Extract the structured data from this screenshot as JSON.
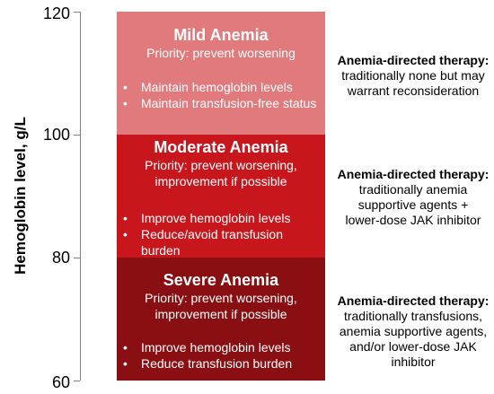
{
  "axis": {
    "label": "Hemoglobin level, g/L",
    "ticks": [
      "120",
      "100",
      "80",
      "60"
    ]
  },
  "bands": [
    {
      "title": "Mild Anemia",
      "priority": "Priority: prevent worsening",
      "bullets": [
        "Maintain hemoglobin levels",
        "Maintain transfusion-free status"
      ],
      "color": "#e07a7c"
    },
    {
      "title": "Moderate Anemia",
      "priority": "Priority: prevent worsening,\nimprovement if possible",
      "bullets": [
        "Improve hemoglobin levels",
        "Reduce/avoid transfusion burden"
      ],
      "color": "#c8161d"
    },
    {
      "title": "Severe Anemia",
      "priority": "Priority: prevent worsening,\nimprovement if possible",
      "bullets": [
        "Improve hemoglobin levels",
        "Reduce transfusion burden"
      ],
      "color": "#8a0f12"
    }
  ],
  "therapy": [
    {
      "title": "Anemia-directed therapy:",
      "body": "traditionally none but may\nwarrant reconsideration"
    },
    {
      "title": "Anemia-directed therapy:",
      "body": "traditionally anemia\nsupportive agents +\nlower-dose JAK inhibitor"
    },
    {
      "title": "Anemia-directed therapy:",
      "body": "traditionally transfusions,\nanemia supportive agents,\nand/or lower-dose JAK\ninhibitor"
    }
  ]
}
